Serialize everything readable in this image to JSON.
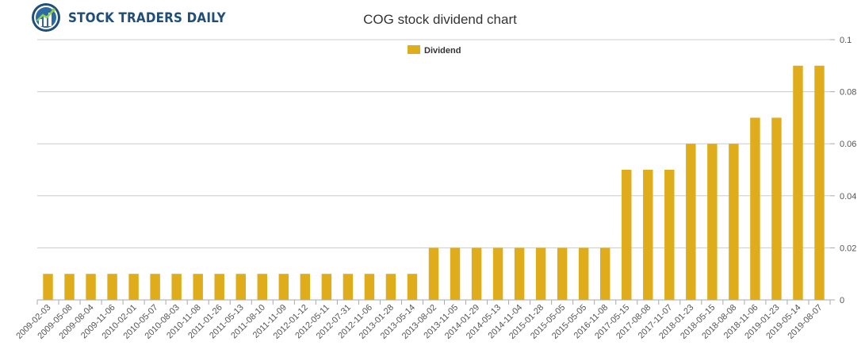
{
  "brand": {
    "name": "STOCK TRADERS DAILY",
    "logo_icon": "chart-globe-logo-icon",
    "primary_color": "#1f4e79"
  },
  "chart_data": {
    "type": "bar",
    "title": "COG stock dividend chart",
    "xlabel": "",
    "ylabel": "",
    "legend_position": "top-center",
    "grid": true,
    "y_axis_side": "right",
    "ylim": [
      0,
      0.1
    ],
    "y_ticks": [
      "0",
      "0.02",
      "0.04",
      "0.06",
      "0.08",
      "0.1"
    ],
    "categories": [
      "2009-02-03",
      "2009-05-08",
      "2009-08-04",
      "2009-11-06",
      "2010-02-01",
      "2010-05-07",
      "2010-08-03",
      "2010-11-08",
      "2011-01-26",
      "2011-05-13",
      "2011-08-10",
      "2011-11-09",
      "2012-01-12",
      "2012-05-11",
      "2012-07-31",
      "2012-11-06",
      "2013-01-28",
      "2013-05-14",
      "2013-08-02",
      "2013-11-05",
      "2014-01-29",
      "2014-05-13",
      "2014-11-04",
      "2015-01-28",
      "2015-05-05",
      "2015-05-05",
      "2016-11-08",
      "2017-05-15",
      "2017-08-08",
      "2017-11-07",
      "2018-01-23",
      "2018-05-15",
      "2018-08-08",
      "2018-11-06",
      "2019-01-23",
      "2019-05-14",
      "2019-08-07"
    ],
    "series": [
      {
        "name": "Dividend",
        "color": "#dfad1b",
        "values": [
          0.01,
          0.01,
          0.01,
          0.01,
          0.01,
          0.01,
          0.01,
          0.01,
          0.01,
          0.01,
          0.01,
          0.01,
          0.01,
          0.01,
          0.01,
          0.01,
          0.01,
          0.01,
          0.02,
          0.02,
          0.02,
          0.02,
          0.02,
          0.02,
          0.02,
          0.02,
          0.02,
          0.05,
          0.05,
          0.05,
          0.06,
          0.06,
          0.06,
          0.07,
          0.07,
          0.09,
          0.09
        ]
      }
    ]
  }
}
